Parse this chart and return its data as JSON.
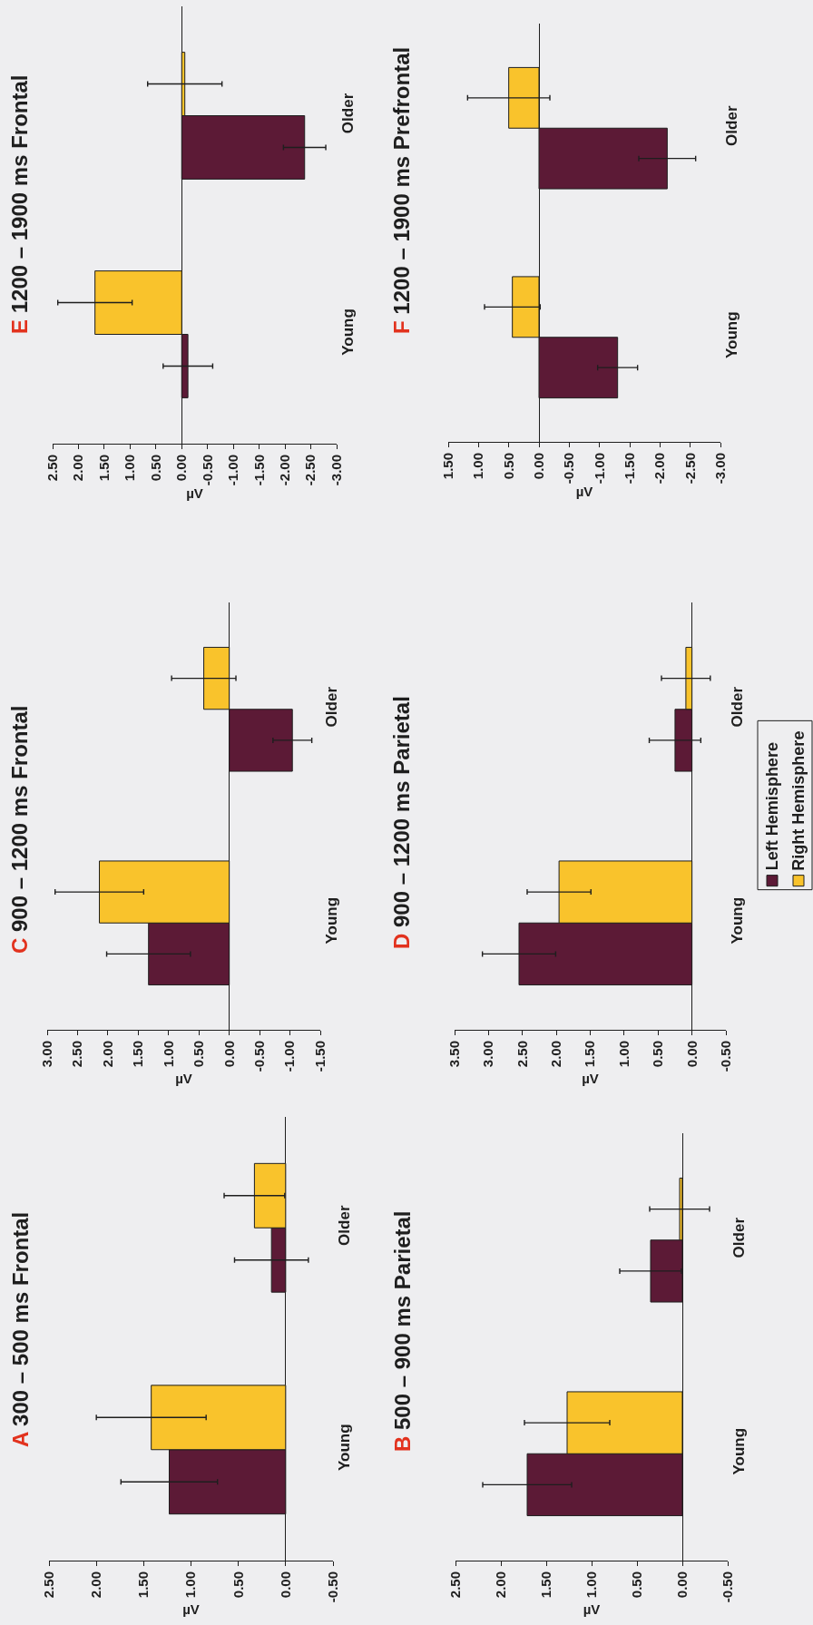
{
  "chart_data": [
    {
      "type": "bar",
      "orientation": "horizontal",
      "title": "A 300 – 500 ms Frontal",
      "xlabel": "µV",
      "categories": [
        "Older",
        "Young"
      ],
      "series": [
        {
          "color": "#5c1a36",
          "values": [
            0.15,
            1.23
          ],
          "errors": [
            0.39,
            0.51
          ]
        },
        {
          "color": "#f9c32c",
          "values": [
            0.33,
            1.42
          ],
          "errors": [
            0.32,
            0.58
          ]
        }
      ],
      "xlim": [
        2.5,
        -0.5
      ],
      "xticks": [
        {
          "value": 2.5,
          "label": "2.50"
        },
        {
          "value": 2.0,
          "label": "2.00"
        },
        {
          "value": 1.5,
          "label": "1.50"
        },
        {
          "value": 1.0,
          "label": "1.00"
        },
        {
          "value": 0.5,
          "label": "0.50"
        },
        {
          "value": 0.0,
          "label": "0.00"
        },
        {
          "value": -0.5,
          "label": "-0.50"
        }
      ]
    },
    {
      "type": "bar",
      "orientation": "horizontal",
      "title": "B 500 – 900 ms Parietal",
      "xlabel": "µV",
      "categories": [
        "Older",
        "Young"
      ],
      "series": [
        {
          "color": "#5c1a36",
          "values": [
            0.35,
            1.71
          ],
          "errors": [
            0.34,
            0.49
          ]
        },
        {
          "color": "#f9c32c",
          "values": [
            0.03,
            1.27
          ],
          "errors": [
            0.33,
            0.47
          ]
        }
      ],
      "xlim": [
        2.5,
        -0.5
      ],
      "xticks": [
        {
          "value": 2.5,
          "label": "2.50"
        },
        {
          "value": 2.0,
          "label": "2.00"
        },
        {
          "value": 1.5,
          "label": "1.50"
        },
        {
          "value": 1.0,
          "label": "1.00"
        },
        {
          "value": 0.5,
          "label": "0.50"
        },
        {
          "value": 0.0,
          "label": "0.00"
        },
        {
          "value": -0.5,
          "label": "-0.50"
        }
      ]
    },
    {
      "type": "bar",
      "orientation": "horizontal",
      "title": "C 900 – 1200 ms Frontal",
      "xlabel": "µV",
      "categories": [
        "Older",
        "Young"
      ],
      "series": [
        {
          "color": "#5c1a36",
          "values": [
            -1.04,
            1.33
          ],
          "errors": [
            0.32,
            0.69
          ]
        },
        {
          "color": "#f9c32c",
          "values": [
            0.42,
            2.14
          ],
          "errors": [
            0.53,
            0.73
          ]
        }
      ],
      "xlim": [
        3.0,
        -1.5
      ],
      "xticks": [
        {
          "value": 3.0,
          "label": "3.00"
        },
        {
          "value": 2.5,
          "label": "2.50"
        },
        {
          "value": 2.0,
          "label": "2.00"
        },
        {
          "value": 1.5,
          "label": "1.50"
        },
        {
          "value": 1.0,
          "label": "1.00"
        },
        {
          "value": 0.5,
          "label": "0.50"
        },
        {
          "value": 0.0,
          "label": "0.00"
        },
        {
          "value": -0.5,
          "label": "-0.50"
        },
        {
          "value": -1.0,
          "label": "-1.00"
        },
        {
          "value": -1.5,
          "label": "-1.50"
        }
      ]
    },
    {
      "type": "bar",
      "orientation": "horizontal",
      "title": "D 900 – 1200 ms Parietal",
      "xlabel": "µV",
      "categories": [
        "Older",
        "Young"
      ],
      "legend": "right",
      "series": [
        {
          "name": "Left Hemisphere",
          "color": "#5c1a36",
          "values": [
            0.25,
            2.55
          ],
          "errors": [
            0.38,
            0.54
          ]
        },
        {
          "name": "Right Hemisphere",
          "color": "#f9c32c",
          "values": [
            0.09,
            1.96
          ],
          "errors": [
            0.36,
            0.47
          ]
        }
      ],
      "xlim": [
        3.5,
        -0.5
      ],
      "xticks": [
        {
          "value": 3.5,
          "label": "3.50"
        },
        {
          "value": 3.0,
          "label": "3.00"
        },
        {
          "value": 2.5,
          "label": "2.50"
        },
        {
          "value": 2.0,
          "label": "2.00"
        },
        {
          "value": 1.5,
          "label": "1.50"
        },
        {
          "value": 1.0,
          "label": "1.00"
        },
        {
          "value": 0.5,
          "label": "0.50"
        },
        {
          "value": 0.0,
          "label": "0.00"
        },
        {
          "value": -0.5,
          "label": "-0.50"
        }
      ]
    },
    {
      "type": "bar",
      "orientation": "horizontal",
      "title": "E 1200 – 1900 ms Frontal",
      "xlabel": "µV",
      "categories": [
        "Older",
        "Young"
      ],
      "series": [
        {
          "color": "#5c1a36",
          "values": [
            -2.38,
            -0.12
          ],
          "errors": [
            0.41,
            0.48
          ]
        },
        {
          "color": "#f9c32c",
          "values": [
            -0.06,
            1.68
          ],
          "errors": [
            0.72,
            0.72
          ]
        }
      ],
      "xlim": [
        2.5,
        -3.0
      ],
      "xticks": [
        {
          "value": 2.5,
          "label": "2.50"
        },
        {
          "value": 2.0,
          "label": "2.00"
        },
        {
          "value": 1.5,
          "label": "1.50"
        },
        {
          "value": 1.0,
          "label": "1.00"
        },
        {
          "value": 0.5,
          "label": "0.50"
        },
        {
          "value": 0.0,
          "label": "0.00"
        },
        {
          "value": -0.5,
          "label": "-0.50"
        },
        {
          "value": -1.0,
          "label": "-1.00"
        },
        {
          "value": -1.5,
          "label": "-1.50"
        },
        {
          "value": -2.0,
          "label": "-2.00"
        },
        {
          "value": -2.5,
          "label": "-2.50"
        },
        {
          "value": -3.0,
          "label": "-3.00"
        }
      ]
    },
    {
      "type": "bar",
      "orientation": "horizontal",
      "title": "F 1200 – 1900 ms Prefrontal",
      "xlabel": "µV",
      "categories": [
        "Older",
        "Young"
      ],
      "series": [
        {
          "color": "#5c1a36",
          "values": [
            -2.12,
            -1.3
          ],
          "errors": [
            0.47,
            0.33
          ]
        },
        {
          "color": "#f9c32c",
          "values": [
            0.5,
            0.44
          ],
          "errors": [
            0.68,
            0.46
          ]
        }
      ],
      "xlim": [
        1.5,
        -3.0
      ],
      "xticks": [
        {
          "value": 1.5,
          "label": "1.50"
        },
        {
          "value": 1.0,
          "label": "1.00"
        },
        {
          "value": 0.5,
          "label": "0.50"
        },
        {
          "value": 0.0,
          "label": "0.00"
        },
        {
          "value": -0.5,
          "label": "-0.50"
        },
        {
          "value": -1.0,
          "label": "-1.00"
        },
        {
          "value": -1.5,
          "label": "-1.50"
        },
        {
          "value": -2.0,
          "label": "-2.00"
        },
        {
          "value": -2.5,
          "label": "-2.50"
        },
        {
          "value": -3.0,
          "label": "-3.00"
        }
      ]
    }
  ]
}
